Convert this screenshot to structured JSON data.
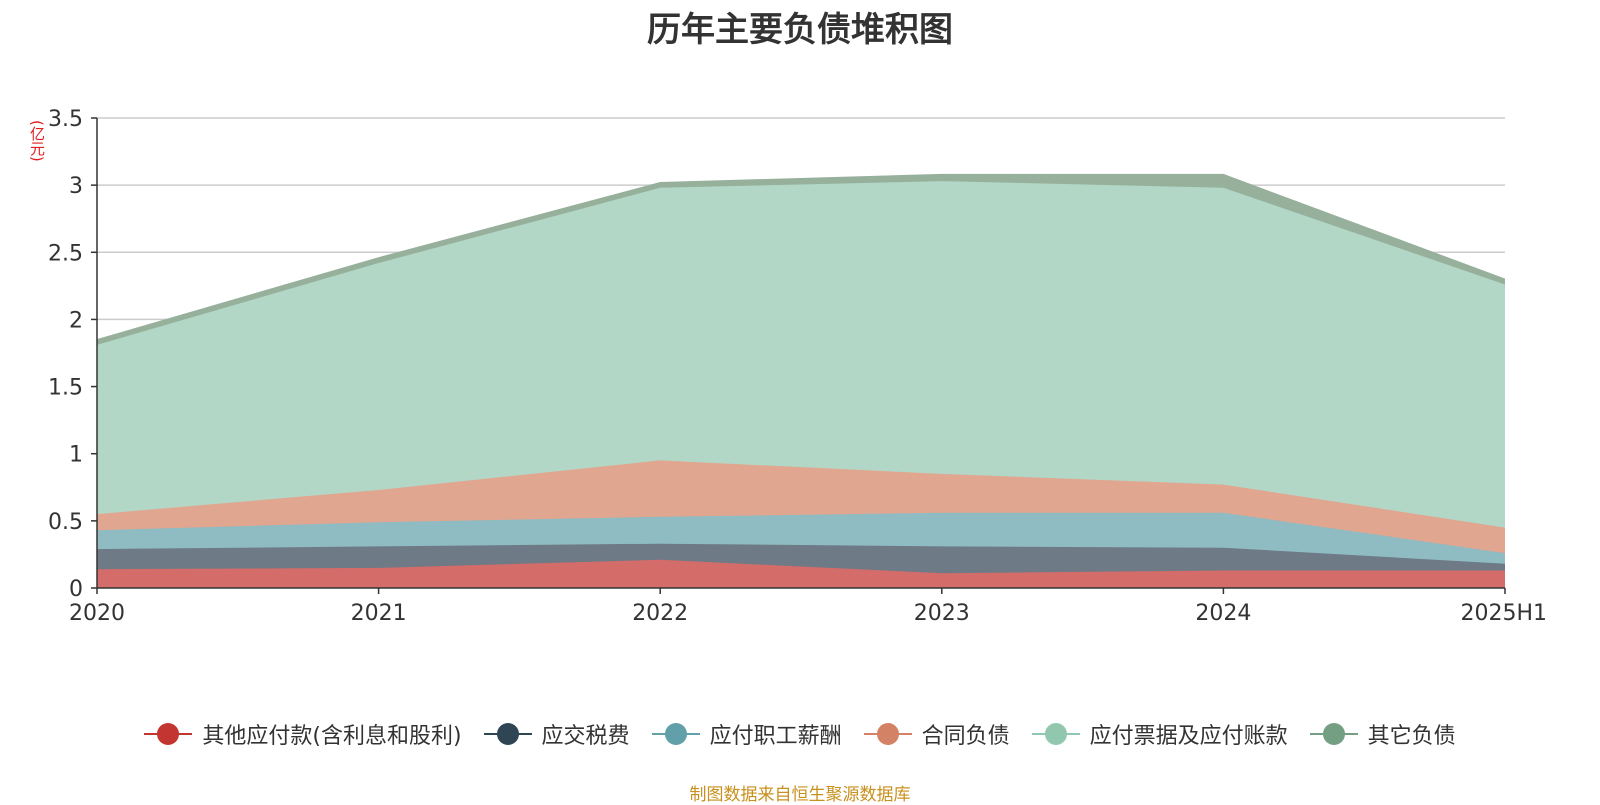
{
  "chart_data": {
    "type": "area",
    "stacked": true,
    "title": "历年主要负债堆积图",
    "unit_label": "(亿元)",
    "categories": [
      "2020",
      "2021",
      "2022",
      "2023",
      "2024",
      "2025H1"
    ],
    "ylim": [
      0,
      3.5
    ],
    "yticks": [
      "0",
      "0.5",
      "1",
      "1.5",
      "2",
      "2.5",
      "3",
      "3.5"
    ],
    "grid": true,
    "legend_position": "bottom",
    "series": [
      {
        "name": "其他应付款(含利息和股利)",
        "values": [
          0.14,
          0.15,
          0.21,
          0.11,
          0.13,
          0.13
        ],
        "color": "#c23531",
        "fill": "#d46c6a"
      },
      {
        "name": "应交税费",
        "values": [
          0.15,
          0.16,
          0.12,
          0.2,
          0.17,
          0.05
        ],
        "color": "#2f4554",
        "fill": "#6e7a85"
      },
      {
        "name": "应付职工薪酬",
        "values": [
          0.14,
          0.18,
          0.2,
          0.25,
          0.26,
          0.08
        ],
        "color": "#61a0a8",
        "fill": "#8fbbc2"
      },
      {
        "name": "合同负债",
        "values": [
          0.12,
          0.24,
          0.42,
          0.29,
          0.21,
          0.19
        ],
        "color": "#d48265",
        "fill": "#e0a690"
      },
      {
        "name": "应付票据及应付账款",
        "values": [
          1.26,
          1.69,
          2.03,
          2.18,
          2.21,
          1.81
        ],
        "color": "#91c7ae",
        "fill": "#b2d7c6"
      },
      {
        "name": "其它负债",
        "values": [
          0.04,
          0.04,
          0.04,
          0.05,
          0.1,
          0.04
        ],
        "color": "#749f83",
        "fill": "#96b09b"
      }
    ]
  },
  "source_note": "制图数据来自恒生聚源数据库"
}
